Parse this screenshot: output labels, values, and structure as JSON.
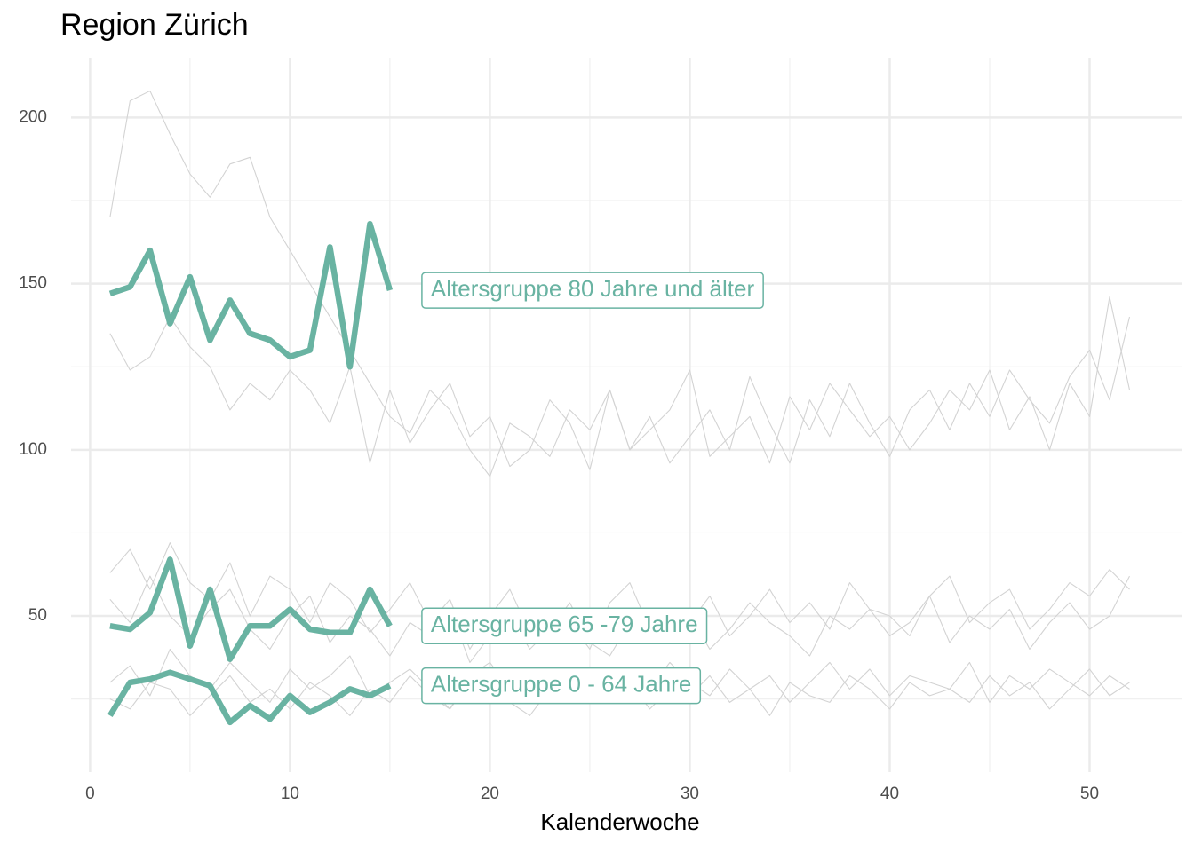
{
  "chart_data": {
    "type": "line",
    "title": "Region Zürich",
    "x_label": "Kalenderwoche",
    "x": [
      1,
      2,
      3,
      4,
      5,
      6,
      7,
      8,
      9,
      10,
      11,
      12,
      13,
      14,
      15,
      16,
      17,
      18,
      19,
      20,
      21,
      22,
      23,
      24,
      25,
      26,
      27,
      28,
      29,
      30,
      31,
      32,
      33,
      34,
      35,
      36,
      37,
      38,
      39,
      40,
      41,
      42,
      43,
      44,
      45,
      46,
      47,
      48,
      49,
      50,
      51,
      52
    ],
    "xlim": [
      -0.95,
      54.6
    ],
    "xticks": [
      0,
      10,
      20,
      30,
      40,
      50
    ],
    "x_minor_grid": [
      5,
      15,
      25,
      35,
      45
    ],
    "ylim": [
      3,
      218
    ],
    "yticks": [
      50,
      100,
      150,
      200
    ],
    "y_minor_grid": [
      25,
      75,
      125,
      175
    ],
    "grid": true,
    "series": [
      {
        "color": "#d3d3d3",
        "values": [
          170,
          205,
          208,
          195,
          183,
          176,
          186,
          188,
          170,
          160,
          150,
          140,
          130,
          120,
          110,
          105,
          118,
          112,
          100,
          92,
          108,
          104,
          98,
          112,
          106,
          118,
          100,
          110,
          96,
          104,
          112,
          100,
          122,
          108,
          96,
          115,
          104,
          120,
          108,
          98,
          112,
          118,
          106,
          120,
          110,
          124,
          115,
          108,
          122,
          130,
          115,
          140
        ]
      },
      {
        "color": "#d3d3d3",
        "values": [
          135,
          124,
          128,
          140,
          131,
          125,
          112,
          120,
          115,
          124,
          118,
          108,
          125,
          96,
          118,
          102,
          112,
          120,
          104,
          110,
          95,
          100,
          115,
          108,
          94,
          118,
          100,
          106,
          112,
          124,
          98,
          104,
          110,
          96,
          116,
          106,
          120,
          112,
          104,
          110,
          100,
          108,
          118,
          112,
          124,
          106,
          116,
          100,
          120,
          110,
          146,
          118
        ]
      },
      {
        "color": "#d3d3d3",
        "values": [
          63,
          70,
          58,
          72,
          60,
          55,
          66,
          50,
          62,
          58,
          48,
          60,
          55,
          45,
          52,
          60,
          48,
          55,
          40,
          50,
          58,
          45,
          52,
          48,
          40,
          54,
          60,
          46,
          52,
          48,
          56,
          44,
          50,
          58,
          48,
          54,
          46,
          60,
          52,
          50,
          44,
          56,
          62,
          48,
          54,
          58,
          46,
          52,
          60,
          56,
          64,
          58
        ]
      },
      {
        "color": "#d3d3d3",
        "values": [
          55,
          48,
          62,
          50,
          44,
          52,
          58,
          46,
          40,
          50,
          56,
          42,
          50,
          46,
          38,
          48,
          44,
          52,
          36,
          44,
          50,
          40,
          46,
          54,
          42,
          38,
          48,
          52,
          44,
          50,
          40,
          46,
          54,
          48,
          44,
          38,
          50,
          46,
          52,
          44,
          48,
          56,
          42,
          50,
          46,
          52,
          40,
          48,
          54,
          46,
          50,
          62
        ]
      },
      {
        "color": "#d3d3d3",
        "values": [
          30,
          35,
          26,
          40,
          32,
          28,
          36,
          30,
          24,
          34,
          28,
          32,
          38,
          26,
          30,
          34,
          28,
          22,
          32,
          36,
          28,
          30,
          26,
          34,
          30,
          24,
          32,
          28,
          36,
          30,
          26,
          34,
          28,
          32,
          24,
          30,
          36,
          28,
          34,
          26,
          32,
          30,
          28,
          36,
          24,
          32,
          28,
          34,
          30,
          26,
          32,
          28
        ]
      },
      {
        "color": "#d3d3d3",
        "values": [
          25,
          22,
          30,
          28,
          20,
          26,
          32,
          24,
          28,
          22,
          30,
          26,
          20,
          28,
          24,
          32,
          26,
          22,
          30,
          28,
          24,
          20,
          28,
          32,
          26,
          24,
          30,
          22,
          28,
          26,
          32,
          24,
          28,
          20,
          30,
          26,
          24,
          32,
          28,
          22,
          30,
          26,
          28,
          24,
          32,
          26,
          30,
          22,
          28,
          34,
          26,
          30
        ]
      },
      {
        "name": "Altersgruppe 80 Jahre und älter",
        "color": "#69b3a2",
        "values": [
          147,
          149,
          160,
          138,
          152,
          133,
          145,
          135,
          133,
          128,
          130,
          161,
          125,
          168,
          148,
          null,
          null,
          null,
          null,
          null,
          null,
          null,
          null,
          null,
          null,
          null,
          null,
          null,
          null,
          null,
          null,
          null,
          null,
          null,
          null,
          null,
          null,
          null,
          null,
          null,
          null,
          null,
          null,
          null,
          null,
          null,
          null,
          null,
          null,
          null,
          null,
          null
        ]
      },
      {
        "name": "Altersgruppe 65 -79 Jahre",
        "color": "#69b3a2",
        "values": [
          47,
          46,
          51,
          67,
          41,
          58,
          37,
          47,
          47,
          52,
          46,
          45,
          45,
          58,
          47,
          null,
          null,
          null,
          null,
          null,
          null,
          null,
          null,
          null,
          null,
          null,
          null,
          null,
          null,
          null,
          null,
          null,
          null,
          null,
          null,
          null,
          null,
          null,
          null,
          null,
          null,
          null,
          null,
          null,
          null,
          null,
          null,
          null,
          null,
          null,
          null,
          null
        ]
      },
      {
        "name": "Altersgruppe 0 - 64 Jahre",
        "color": "#69b3a2",
        "values": [
          20,
          30,
          31,
          33,
          31,
          29,
          18,
          23,
          19,
          26,
          21,
          24,
          28,
          26,
          29,
          null,
          null,
          null,
          null,
          null,
          null,
          null,
          null,
          null,
          null,
          null,
          null,
          null,
          null,
          null,
          null,
          null,
          null,
          null,
          null,
          null,
          null,
          null,
          null,
          null,
          null,
          null,
          null,
          null,
          null,
          null,
          null,
          null,
          null,
          null,
          null,
          null
        ]
      }
    ]
  }
}
